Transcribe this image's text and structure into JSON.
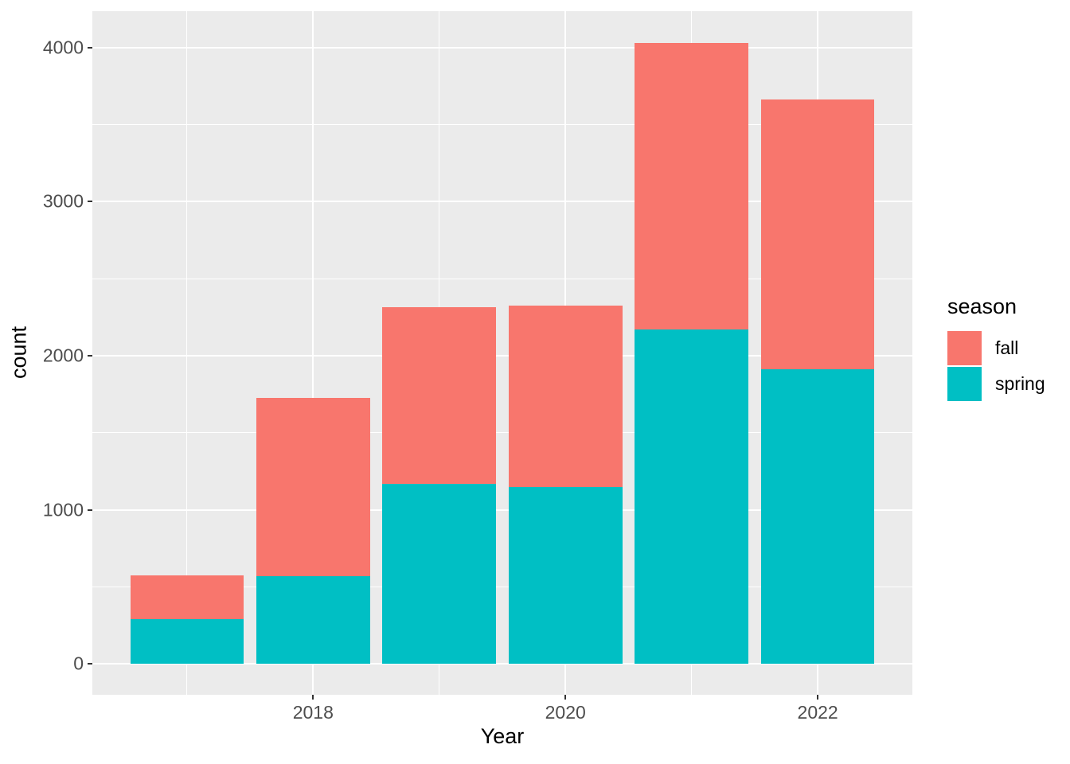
{
  "figure": {
    "background": "#FFFFFF",
    "panel_background": "#EBEBEB",
    "gridline_color": "#FFFFFF",
    "tick_mark_color": "#333333",
    "tick_label_color": "#4D4D4D",
    "axis_title_color": "#000000"
  },
  "chart_data": {
    "type": "bar",
    "stacked": true,
    "title": "",
    "xlabel": "Year",
    "ylabel": "count",
    "categories": [
      2017,
      2018,
      2019,
      2020,
      2021,
      2022
    ],
    "series": [
      {
        "name": "fall",
        "color": "#F8766D",
        "values": [
          285,
          1155,
          1145,
          1175,
          1860,
          1750
        ]
      },
      {
        "name": "spring",
        "color": "#00BFC4",
        "values": [
          290,
          570,
          1170,
          1150,
          2170,
          1910
        ]
      }
    ],
    "stack_order_bottom_to_top": [
      "spring",
      "fall"
    ],
    "totals": [
      575,
      1725,
      2315,
      2325,
      4030,
      3660
    ],
    "legend": {
      "title": "season",
      "position": "right",
      "entries": [
        "fall",
        "spring"
      ]
    },
    "x_ticks": [
      2018,
      2020,
      2022
    ],
    "x_minor_breaks": [
      2017,
      2019,
      2021
    ],
    "y_ticks": [
      0,
      1000,
      2000,
      3000,
      4000
    ],
    "y_minor_breaks": [
      500,
      1500,
      2500,
      3500
    ],
    "xlim": [
      2016.25,
      2022.75
    ],
    "ylim": [
      -200,
      4235
    ],
    "bar_width": 0.9,
    "grid": true
  }
}
